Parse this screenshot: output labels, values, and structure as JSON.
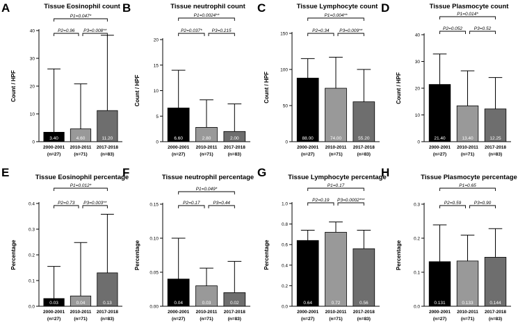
{
  "colors": {
    "black": "#000000",
    "mid": "#999999",
    "dark": "#6e6e6e",
    "axis": "#000000",
    "label_light": "#ffffff"
  },
  "chart_data": [
    {
      "letter": "A",
      "type": "bar",
      "title": "Tissue Eosinophil count",
      "ylabel": "Count / HPF",
      "ylim": [
        0,
        40
      ],
      "yticks": [
        "0",
        "10",
        "20",
        "30",
        "40"
      ],
      "ytick_values": [
        0,
        10,
        20,
        30,
        40
      ],
      "categories": [
        "2000-2001",
        "2010-2011",
        "2017-2018"
      ],
      "n": [
        "(n=27)",
        "(n=71)",
        "(n=83)"
      ],
      "values": [
        3.4,
        4.6,
        11.2
      ],
      "errors_upper": [
        26.2,
        20.8,
        38.3
      ],
      "value_labels": [
        "3.40",
        "4.60",
        "11.20"
      ],
      "p_top": "P1=0.047*",
      "p_left": "P2=0.96",
      "p_right": "P3=0.008**"
    },
    {
      "letter": "B",
      "type": "bar",
      "title": "Tissue neutrophil count",
      "ylabel": "Count / HPF",
      "ylim": [
        0,
        20
      ],
      "yticks": [
        "0",
        "5",
        "10",
        "15",
        "20"
      ],
      "ytick_values": [
        0,
        5,
        10,
        15,
        20
      ],
      "categories": [
        "2000-2001",
        "2010-2011",
        "2017-2018"
      ],
      "n": [
        "(n=27)",
        "(n=71)",
        "(n=83)"
      ],
      "values": [
        6.6,
        2.8,
        2.0
      ],
      "errors_upper": [
        14.0,
        8.2,
        7.4
      ],
      "value_labels": [
        "6.60",
        "2.80",
        "2.00"
      ],
      "p_top": "P1=0.0024**",
      "p_left": "P2=0.037*",
      "p_right": "P3=0.215"
    },
    {
      "letter": "C",
      "type": "bar",
      "title": "Tissue Lymphocyte count",
      "ylabel": "Count / HPF",
      "ylim": [
        0,
        150
      ],
      "yticks": [
        "0",
        "50",
        "100",
        "150"
      ],
      "ytick_values": [
        0,
        50,
        100,
        150
      ],
      "categories": [
        "2000-2001",
        "2010-2011",
        "2017-2018"
      ],
      "n": [
        "(n=27)",
        "(n=71)",
        "(n=83)"
      ],
      "values": [
        88.0,
        74.0,
        55.2
      ],
      "errors_upper": [
        115,
        117,
        100
      ],
      "value_labels": [
        "88.00",
        "74.00",
        "55.20"
      ],
      "p_top": "P1=0.004**",
      "p_left": "P2=0.34",
      "p_right": "P3=0.009**"
    },
    {
      "letter": "D",
      "type": "bar",
      "title": "Tissue Plasmocyte count",
      "ylabel": "Count / HPF",
      "ylim": [
        0,
        40
      ],
      "yticks": [
        "0",
        "10",
        "20",
        "30",
        "40"
      ],
      "ytick_values": [
        0,
        10,
        20,
        30,
        40
      ],
      "categories": [
        "2000-2001",
        "2010-2011",
        "2017-2018"
      ],
      "n": [
        "(n=27)",
        "(n=71)",
        "(n=83)"
      ],
      "values": [
        21.4,
        13.4,
        12.25
      ],
      "errors_upper": [
        32.8,
        26.5,
        24.0
      ],
      "value_labels": [
        "21.40",
        "13.40",
        "12.25"
      ],
      "p_top": "P1=0.014*",
      "p_left": "P2=0.052",
      "p_right": "P3=0.52"
    },
    {
      "letter": "E",
      "type": "bar",
      "title": "Tissue Eosinophil percentage",
      "ylabel": "Percentage",
      "ylim": [
        0,
        0.4
      ],
      "yticks": [
        "0.0",
        "0.1",
        "0.2",
        "0.3",
        "0.4"
      ],
      "ytick_values": [
        0,
        0.1,
        0.2,
        0.3,
        0.4
      ],
      "categories": [
        "2000-2001",
        "2010-2011",
        "2017-2018"
      ],
      "n": [
        "(n=27)",
        "(n=71)",
        "(n=83)"
      ],
      "values": [
        0.03,
        0.04,
        0.13
      ],
      "errors_upper": [
        0.155,
        0.248,
        0.358
      ],
      "value_labels": [
        "0.03",
        "0.04",
        "0.13"
      ],
      "p_top": "P1=0.012*",
      "p_left": "P2=0.73",
      "p_right": "P3=0.003**"
    },
    {
      "letter": "F",
      "type": "bar",
      "title": "Tissue neutrophil percentage",
      "ylabel": "Percentage",
      "ylim": [
        0,
        0.15
      ],
      "yticks": [
        "0.00",
        "0.05",
        "0.10",
        "0.15"
      ],
      "ytick_values": [
        0,
        0.05,
        0.1,
        0.15
      ],
      "categories": [
        "2000-2001",
        "2010-2011",
        "2017-2018"
      ],
      "n": [
        "(n=27)",
        "(n=71)",
        "(n=83)"
      ],
      "values": [
        0.04,
        0.03,
        0.02
      ],
      "errors_upper": [
        0.1,
        0.056,
        0.066
      ],
      "value_labels": [
        "0.04",
        "0.03",
        "0.02"
      ],
      "p_top": "P1=0.049*",
      "p_left": "P2=0.17",
      "p_right": "P3=0.44"
    },
    {
      "letter": "G",
      "type": "bar",
      "title": "Tissue Lymphocyte percentage",
      "ylabel": "Percentage",
      "ylim": [
        0,
        1.0
      ],
      "yticks": [
        "0.0",
        "0.2",
        "0.4",
        "0.6",
        "0.8",
        "1.0"
      ],
      "ytick_values": [
        0,
        0.2,
        0.4,
        0.6,
        0.8,
        1.0
      ],
      "categories": [
        "2000-2001",
        "2010-2011",
        "2017-2018"
      ],
      "n": [
        "(n=27)",
        "(n=71)",
        "(n=83)"
      ],
      "values": [
        0.64,
        0.72,
        0.56
      ],
      "errors_upper": [
        0.74,
        0.82,
        0.74
      ],
      "value_labels": [
        "0.64",
        "0.72",
        "0.56"
      ],
      "p_top": "P1=0.17",
      "p_left": "P2=0.19",
      "p_right": "P3=0.0002***"
    },
    {
      "letter": "H",
      "type": "bar",
      "title": "Tissue Plasmocyte percentage",
      "ylabel": "Percentage",
      "ylim": [
        0,
        0.3
      ],
      "yticks": [
        "0.0",
        "0.1",
        "0.2",
        "0.3"
      ],
      "ytick_values": [
        0,
        0.1,
        0.2,
        0.3
      ],
      "categories": [
        "2000-2001",
        "2010-2011",
        "2017-2018"
      ],
      "n": [
        "(n=27)",
        "(n=71)",
        "(n=83)"
      ],
      "values": [
        0.131,
        0.133,
        0.144
      ],
      "errors_upper": [
        0.239,
        0.209,
        0.228
      ],
      "value_labels": [
        "0.131",
        "0.133",
        "0.144"
      ],
      "p_top": "P1=0.65",
      "p_left": "P2=0.59",
      "p_right": "P3=0.90"
    }
  ]
}
